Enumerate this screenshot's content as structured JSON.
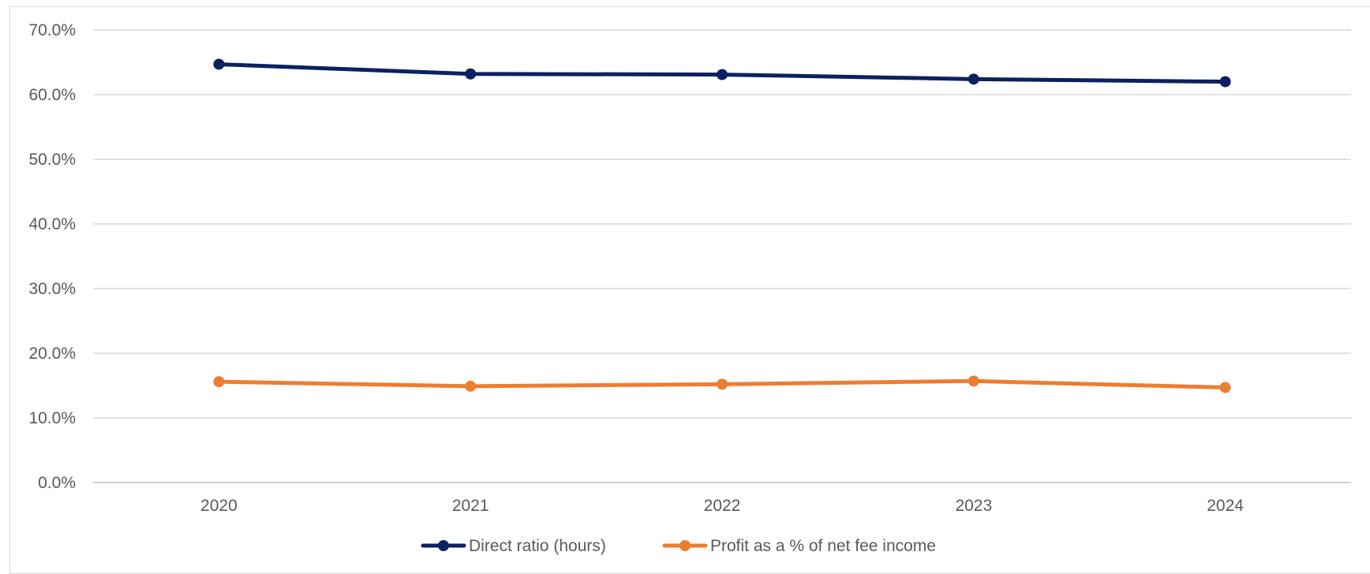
{
  "chart_data": {
    "type": "line",
    "title": "",
    "xlabel": "",
    "ylabel": "",
    "categories": [
      "2020",
      "2021",
      "2022",
      "2023",
      "2024"
    ],
    "ylim": [
      0,
      70
    ],
    "y_ticks": [
      0,
      10,
      20,
      30,
      40,
      50,
      60,
      70
    ],
    "y_tick_labels": [
      "0.0%",
      "10.0%",
      "20.0%",
      "30.0%",
      "40.0%",
      "50.0%",
      "60.0%",
      "70.0%"
    ],
    "grid": true,
    "legend_position": "bottom",
    "series": [
      {
        "name": "Direct ratio (hours)",
        "color": "#0b2160",
        "values": [
          64.7,
          63.2,
          63.1,
          62.4,
          62.0
        ]
      },
      {
        "name": "Profit as a % of net fee income",
        "color": "#ed7d31",
        "values": [
          15.6,
          14.9,
          15.2,
          15.7,
          14.7
        ]
      }
    ]
  }
}
